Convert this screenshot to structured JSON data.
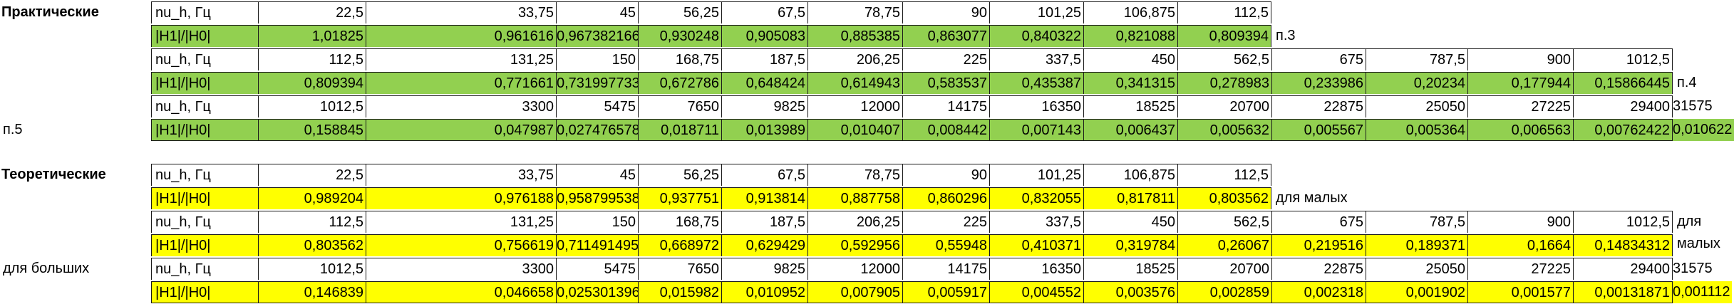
{
  "sections": [
    {
      "title": "Практические",
      "fill": "#92d050",
      "rows": [
        {
          "label": "nu_h, Гц",
          "values": [
            "22,5",
            "33,75",
            "45",
            "56,25",
            "67,5",
            "78,75",
            "90",
            "101,25",
            "106,875",
            "112,5"
          ],
          "note": ""
        },
        {
          "label": "|H1|/|H0|",
          "values": [
            "1,01825",
            "0,961616",
            "0,967382166",
            "0,930248",
            "0,905083",
            "0,885385",
            "0,863077",
            "0,840322",
            "0,821088",
            "0,809394"
          ],
          "note": "п.3"
        },
        {
          "label": "nu_h, Гц",
          "values": [
            "112,5",
            "131,25",
            "150",
            "168,75",
            "187,5",
            "206,25",
            "225",
            "337,5",
            "450",
            "562,5",
            "675",
            "787,5",
            "900",
            "1012,5"
          ],
          "note": ""
        },
        {
          "label": "|H1|/|H0|",
          "values": [
            "0,809394",
            "0,771661",
            "0,731997733",
            "0,672786",
            "0,648424",
            "0,614943",
            "0,583537",
            "0,435387",
            "0,341315",
            "0,278983",
            "0,233986",
            "0,20234",
            "0,177944",
            "0,15866445"
          ],
          "note": "п.4"
        },
        {
          "label": "nu_h, Гц",
          "values": [
            "1012,5",
            "3300",
            "5475",
            "7650",
            "9825",
            "12000",
            "14175",
            "16350",
            "18525",
            "20700",
            "22875",
            "25050",
            "27225",
            "29400",
            "31575"
          ],
          "note": ""
        },
        {
          "label": "|H1|/|H0|",
          "values": [
            "0,158845",
            "0,047987",
            "0,027476578",
            "0,018711",
            "0,013989",
            "0,010407",
            "0,008442",
            "0,007143",
            "0,006437",
            "0,005632",
            "0,005567",
            "0,005364",
            "0,006563",
            "0,00762422",
            "0,010622"
          ],
          "note": "п.5"
        }
      ]
    },
    {
      "title": "Теоретические",
      "fill": "#ffff00",
      "rows": [
        {
          "label": "nu_h, Гц",
          "values": [
            "22,5",
            "33,75",
            "45",
            "56,25",
            "67,5",
            "78,75",
            "90",
            "101,25",
            "106,875",
            "112,5"
          ],
          "note": ""
        },
        {
          "label": "|H1|/|H0|",
          "values": [
            "0,989204",
            "0,976188",
            "0,958799538",
            "0,937751",
            "0,913814",
            "0,887758",
            "0,860296",
            "0,832055",
            "0,817811",
            "0,803562"
          ],
          "note": "для малых"
        },
        {
          "label": "nu_h, Гц",
          "values": [
            "112,5",
            "131,25",
            "150",
            "168,75",
            "187,5",
            "206,25",
            "225",
            "337,5",
            "450",
            "562,5",
            "675",
            "787,5",
            "900",
            "1012,5"
          ],
          "note": "для малых"
        },
        {
          "label": "|H1|/|H0|",
          "values": [
            "0,803562",
            "0,756619",
            "0,711491495",
            "0,668972",
            "0,629429",
            "0,592956",
            "0,55948",
            "0,410371",
            "0,319784",
            "0,26067",
            "0,219516",
            "0,189371",
            "0,1664",
            "0,14834312"
          ],
          "note": ""
        },
        {
          "label": "nu_h, Гц",
          "values": [
            "1012,5",
            "3300",
            "5475",
            "7650",
            "9825",
            "12000",
            "14175",
            "16350",
            "18525",
            "20700",
            "22875",
            "25050",
            "27225",
            "29400",
            "31575"
          ],
          "note": "для больших"
        },
        {
          "label": "|H1|/|H0|",
          "values": [
            "0,146839",
            "0,046658",
            "0,025301396",
            "0,015982",
            "0,010952",
            "0,007905",
            "0,005917",
            "0,004552",
            "0,003576",
            "0,002859",
            "0,002318",
            "0,001902",
            "0,001577",
            "0,00131871",
            "0,001112"
          ],
          "note": ""
        }
      ]
    }
  ]
}
